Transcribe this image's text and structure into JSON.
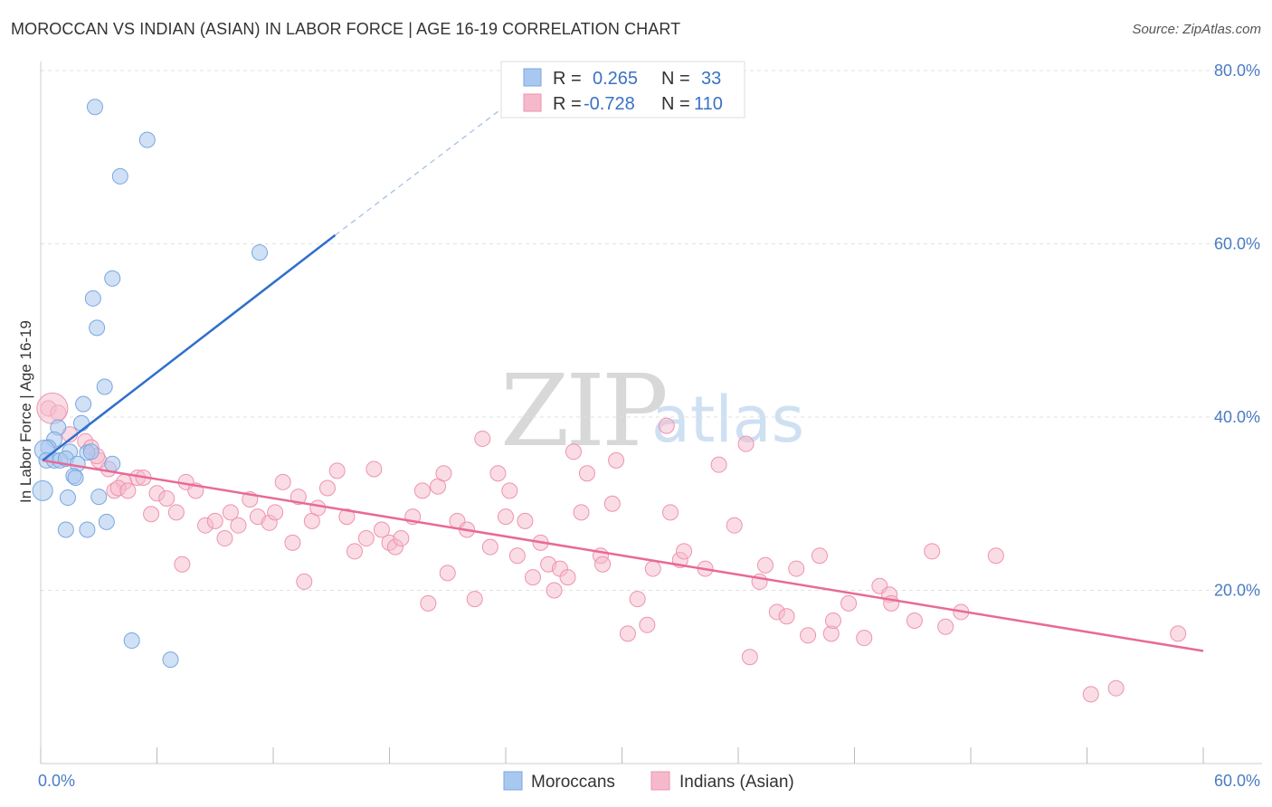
{
  "title": "MOROCCAN VS INDIAN (ASIAN) IN LABOR FORCE | AGE 16-19 CORRELATION CHART",
  "source": "Source: ZipAtlas.com",
  "colors": {
    "blue_fill": "#a9c8ef",
    "blue_stroke": "#7aa6df",
    "blue_line": "#2f6fcc",
    "pink_fill": "#f6b9cc",
    "pink_stroke": "#ee93b0",
    "pink_line": "#e86a96",
    "grid": "#e2e2e2",
    "tick_text": "#4a7cc4"
  },
  "legend_top": {
    "r_label": "R =",
    "n_label": "N =",
    "rows": [
      {
        "series": "moroccans",
        "r": "0.265",
        "n": "33"
      },
      {
        "series": "indians",
        "r": "-0.728",
        "n": "110"
      }
    ]
  },
  "watermark": {
    "zip": "ZIP",
    "atlas": "atlas"
  },
  "chart_data": {
    "type": "scatter",
    "title": "MOROCCAN VS INDIAN (ASIAN) IN LABOR FORCE | AGE 16-19 CORRELATION CHART",
    "xlabel": "",
    "ylabel": "In Labor Force | Age 16-19",
    "xlim": [
      0,
      60
    ],
    "ylim": [
      0,
      80
    ],
    "x_tick_labels": [
      "0.0%",
      "60.0%"
    ],
    "y_tick_values": [
      20,
      40,
      60,
      80
    ],
    "y_tick_labels": [
      "20.0%",
      "40.0%",
      "60.0%",
      "80.0%"
    ],
    "legend": [
      "Moroccans",
      "Indians (Asian)"
    ],
    "series": [
      {
        "name": "Moroccans",
        "r": 0.265,
        "n": 33,
        "trend": {
          "x": [
            0.1,
            15.2
          ],
          "y": [
            35.0,
            61.0
          ]
        },
        "trend_dashed": {
          "x": [
            15.2,
            24.5
          ],
          "y": [
            61.0,
            76.8
          ]
        },
        "points": [
          [
            2.8,
            75.8
          ],
          [
            5.5,
            72.0
          ],
          [
            4.1,
            67.8
          ],
          [
            11.3,
            59.0
          ],
          [
            3.7,
            56.0
          ],
          [
            2.7,
            53.7
          ],
          [
            2.9,
            50.3
          ],
          [
            3.3,
            43.5
          ],
          [
            2.2,
            41.5
          ],
          [
            2.1,
            39.3
          ],
          [
            0.9,
            38.8
          ],
          [
            0.7,
            37.4
          ],
          [
            0.4,
            36.5
          ],
          [
            0.2,
            36.2
          ],
          [
            1.5,
            36.0
          ],
          [
            2.4,
            35.9
          ],
          [
            2.6,
            36.0
          ],
          [
            0.3,
            35.0
          ],
          [
            0.7,
            35.0
          ],
          [
            1.0,
            35.0
          ],
          [
            1.3,
            35.2
          ],
          [
            1.9,
            34.6
          ],
          [
            3.7,
            34.6
          ],
          [
            1.7,
            33.2
          ],
          [
            1.8,
            33.0
          ],
          [
            0.1,
            31.5
          ],
          [
            1.4,
            30.7
          ],
          [
            3.0,
            30.8
          ],
          [
            3.4,
            27.9
          ],
          [
            1.3,
            27.0
          ],
          [
            2.4,
            27.0
          ],
          [
            4.7,
            14.2
          ],
          [
            6.7,
            12.0
          ]
        ]
      },
      {
        "name": "Indians (Asian)",
        "r": -0.728,
        "n": 110,
        "trend": {
          "x": [
            0.1,
            60.0
          ],
          "y": [
            35.0,
            13.0
          ]
        },
        "points": [
          [
            0.4,
            41.0
          ],
          [
            0.9,
            40.5
          ],
          [
            1.5,
            38.0
          ],
          [
            2.3,
            37.2
          ],
          [
            2.6,
            36.5
          ],
          [
            3.0,
            35.0
          ],
          [
            2.9,
            35.5
          ],
          [
            3.5,
            34.0
          ],
          [
            5.0,
            33.0
          ],
          [
            4.3,
            32.5
          ],
          [
            3.8,
            31.5
          ],
          [
            4.0,
            31.8
          ],
          [
            4.5,
            31.5
          ],
          [
            5.3,
            33.0
          ],
          [
            6.0,
            31.2
          ],
          [
            6.5,
            30.6
          ],
          [
            7.0,
            29.0
          ],
          [
            5.7,
            28.8
          ],
          [
            7.5,
            32.5
          ],
          [
            8.0,
            31.5
          ],
          [
            8.5,
            27.5
          ],
          [
            9.0,
            28.0
          ],
          [
            9.5,
            26.0
          ],
          [
            9.8,
            29.0
          ],
          [
            10.2,
            27.5
          ],
          [
            10.8,
            30.5
          ],
          [
            11.2,
            28.5
          ],
          [
            11.8,
            27.8
          ],
          [
            12.1,
            29.0
          ],
          [
            12.5,
            32.5
          ],
          [
            13.0,
            25.5
          ],
          [
            13.3,
            30.8
          ],
          [
            14.0,
            28.0
          ],
          [
            14.3,
            29.5
          ],
          [
            14.8,
            31.8
          ],
          [
            15.3,
            33.8
          ],
          [
            15.8,
            28.5
          ],
          [
            16.2,
            24.5
          ],
          [
            16.8,
            26.0
          ],
          [
            17.2,
            34.0
          ],
          [
            17.6,
            27.0
          ],
          [
            18.0,
            25.5
          ],
          [
            18.3,
            25.0
          ],
          [
            18.6,
            26.0
          ],
          [
            19.2,
            28.5
          ],
          [
            19.7,
            31.5
          ],
          [
            20.0,
            18.5
          ],
          [
            20.5,
            32.0
          ],
          [
            20.8,
            33.5
          ],
          [
            21.0,
            22.0
          ],
          [
            21.5,
            28.0
          ],
          [
            22.0,
            27.0
          ],
          [
            22.4,
            19.0
          ],
          [
            22.8,
            37.5
          ],
          [
            23.2,
            25.0
          ],
          [
            23.6,
            33.5
          ],
          [
            24.0,
            28.5
          ],
          [
            24.2,
            31.5
          ],
          [
            24.6,
            24.0
          ],
          [
            25.0,
            28.0
          ],
          [
            25.4,
            21.5
          ],
          [
            25.8,
            25.5
          ],
          [
            26.2,
            23.0
          ],
          [
            26.5,
            20.0
          ],
          [
            26.8,
            22.5
          ],
          [
            27.2,
            21.5
          ],
          [
            27.5,
            36.0
          ],
          [
            27.9,
            29.0
          ],
          [
            28.2,
            33.5
          ],
          [
            28.9,
            24.0
          ],
          [
            29.0,
            23.0
          ],
          [
            29.5,
            30.0
          ],
          [
            29.7,
            35.0
          ],
          [
            30.3,
            15.0
          ],
          [
            30.8,
            19.0
          ],
          [
            31.3,
            16.0
          ],
          [
            31.6,
            22.5
          ],
          [
            32.3,
            39.0
          ],
          [
            32.5,
            29.0
          ],
          [
            33.0,
            23.5
          ],
          [
            33.2,
            24.5
          ],
          [
            34.3,
            22.5
          ],
          [
            35.0,
            34.5
          ],
          [
            35.8,
            27.5
          ],
          [
            36.4,
            36.9
          ],
          [
            36.6,
            12.3
          ],
          [
            37.1,
            21.0
          ],
          [
            37.4,
            22.9
          ],
          [
            38.0,
            17.5
          ],
          [
            38.5,
            17.0
          ],
          [
            39.0,
            22.5
          ],
          [
            39.6,
            14.8
          ],
          [
            40.2,
            24.0
          ],
          [
            40.8,
            15.0
          ],
          [
            40.9,
            16.5
          ],
          [
            41.7,
            18.5
          ],
          [
            42.5,
            14.5
          ],
          [
            43.3,
            20.5
          ],
          [
            43.8,
            19.5
          ],
          [
            43.9,
            18.5
          ],
          [
            45.1,
            16.5
          ],
          [
            46.0,
            24.5
          ],
          [
            46.7,
            15.8
          ],
          [
            47.5,
            17.5
          ],
          [
            49.3,
            24.0
          ],
          [
            54.2,
            8.0
          ],
          [
            55.5,
            8.7
          ],
          [
            58.7,
            15.0
          ],
          [
            13.6,
            21.0
          ],
          [
            7.3,
            23.0
          ]
        ]
      }
    ]
  }
}
